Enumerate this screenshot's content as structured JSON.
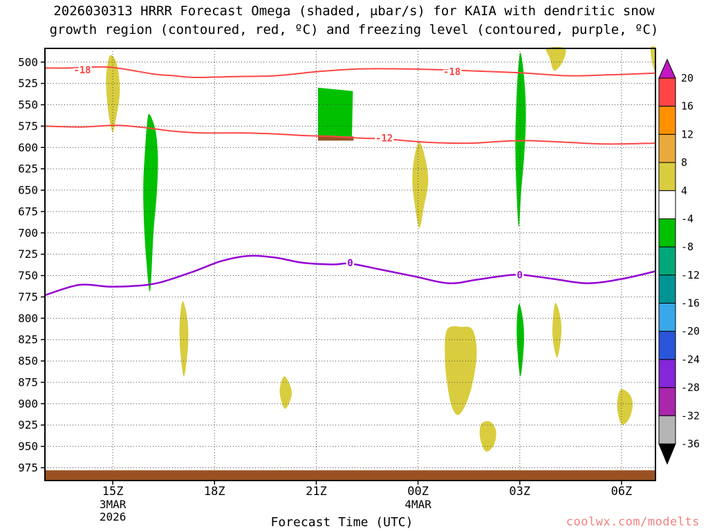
{
  "title": {
    "line1": "2026030313 HRRR Forecast Omega (shaded, μbar/s) for KAIA with dendritic snow",
    "line2": "growth region (contoured, red, ºC) and freezing level (contoured, purple, ºC)"
  },
  "watermark": {
    "text": "coolwx.com/modelts"
  },
  "chart_data": {
    "type": "contour",
    "subtype": "time-height-cross-section",
    "title": "2026030313 HRRR Forecast Omega (shaded, μbar/s) for KAIA with dendritic snow growth region (contoured, red, ºC) and freezing level (contoured, purple, ºC)",
    "xlabel": "Forecast Time (UTC)",
    "x_range_hours_utc": [
      13,
      31
    ],
    "x_ticks": [
      {
        "t": 15,
        "label": "15Z"
      },
      {
        "t": 18,
        "label": "18Z"
      },
      {
        "t": 21,
        "label": "21Z"
      },
      {
        "t": 24,
        "label": "00Z"
      },
      {
        "t": 27,
        "label": "03Z"
      },
      {
        "t": 30,
        "label": "06Z"
      }
    ],
    "x_date_labels": [
      {
        "t": 15,
        "lines": [
          "3MAR",
          "2026"
        ]
      },
      {
        "t": 24,
        "lines": [
          "4MAR"
        ]
      }
    ],
    "pressure_range": [
      484,
      990
    ],
    "pressure_ticks": [
      500,
      525,
      550,
      575,
      600,
      625,
      650,
      675,
      700,
      725,
      750,
      775,
      800,
      825,
      850,
      875,
      900,
      925,
      950,
      975
    ],
    "grid_style": "dotted",
    "colorbar": {
      "units": "μbar/s",
      "tick_labels": [
        "20",
        "16",
        "12",
        "8",
        "4",
        "-4",
        "-8",
        "-12",
        "-16",
        "-20",
        "-24",
        "-28",
        "-32",
        "-36"
      ],
      "colors_top_to_bottom": [
        "#c317c3",
        "#ff4545",
        "#ff9100",
        "#e8aa3c",
        "#d9cd3f",
        "#ffffff",
        "#00c000",
        "#00a878",
        "#009494",
        "#38a8e8",
        "#2a55d9",
        "#8426d9",
        "#aa26aa",
        "#b5b5b5",
        "#000000"
      ]
    },
    "contours": [
      {
        "id": "dendritic-minus-18",
        "label": "-18",
        "color": "#ff4545",
        "width": 2,
        "points": [
          [
            13,
            507
          ],
          [
            13.7,
            507
          ],
          [
            14.9,
            506
          ],
          [
            16.2,
            514
          ],
          [
            16.8,
            516
          ],
          [
            17.4,
            518
          ],
          [
            18.6,
            517
          ],
          [
            19.8,
            516
          ],
          [
            21.1,
            511
          ],
          [
            22.3,
            508
          ],
          [
            23.5,
            508
          ],
          [
            24.7,
            509
          ],
          [
            26.0,
            511
          ],
          [
            27.2,
            513
          ],
          [
            28.4,
            516
          ],
          [
            29.6,
            515
          ],
          [
            31,
            513
          ]
        ],
        "labels": [
          [
            14.1,
            509
          ],
          [
            25.0,
            511
          ]
        ]
      },
      {
        "id": "dendritic-minus-12",
        "label": "-12",
        "color": "#ff4545",
        "width": 2,
        "points": [
          [
            13,
            575
          ],
          [
            14.1,
            576
          ],
          [
            15.1,
            574
          ],
          [
            16.0,
            577
          ],
          [
            16.8,
            581
          ],
          [
            17.6,
            583
          ],
          [
            18.7,
            583
          ],
          [
            19.7,
            584
          ],
          [
            20.6,
            586
          ],
          [
            21.5,
            587
          ],
          [
            22.3,
            589
          ],
          [
            23.0,
            590
          ],
          [
            24.3,
            594
          ],
          [
            25.5,
            595
          ],
          [
            26.4,
            593
          ],
          [
            27.2,
            592
          ],
          [
            28.4,
            594
          ],
          [
            29.6,
            596
          ],
          [
            31,
            595
          ]
        ],
        "labels": [
          [
            23.0,
            589
          ]
        ]
      },
      {
        "id": "freezing-level-0",
        "label": "0",
        "color": "#9400d3",
        "width": 2.5,
        "points": [
          [
            13,
            773
          ],
          [
            14.0,
            761
          ],
          [
            14.9,
            763
          ],
          [
            15.7,
            762
          ],
          [
            16.4,
            758
          ],
          [
            17.4,
            745
          ],
          [
            18.2,
            733
          ],
          [
            19.0,
            727
          ],
          [
            19.8,
            729
          ],
          [
            20.6,
            735
          ],
          [
            21.5,
            737
          ],
          [
            22.0,
            736
          ],
          [
            22.9,
            743
          ],
          [
            23.9,
            751
          ],
          [
            24.9,
            759
          ],
          [
            25.7,
            755
          ],
          [
            26.4,
            751
          ],
          [
            27.0,
            749
          ],
          [
            28.0,
            754
          ],
          [
            29.0,
            759
          ],
          [
            30.0,
            754
          ],
          [
            31,
            745
          ]
        ],
        "labels": [
          [
            22.0,
            735
          ],
          [
            27.0,
            749
          ]
        ]
      }
    ],
    "shaded_regions": [
      {
        "id": "yellow-15z-upper",
        "value": "4 to 8",
        "fill": "#d9cd3f",
        "points": [
          [
            14.93,
            492
          ],
          [
            15.08,
            498
          ],
          [
            15.18,
            516
          ],
          [
            15.2,
            540
          ],
          [
            15.05,
            575
          ],
          [
            14.98,
            581
          ],
          [
            14.86,
            556
          ],
          [
            14.8,
            524
          ],
          [
            14.84,
            504
          ]
        ]
      },
      {
        "id": "green-16z-column",
        "value": "-8 to -4",
        "fill": "#00c000",
        "points": [
          [
            16.08,
            561
          ],
          [
            16.26,
            580
          ],
          [
            16.33,
            612
          ],
          [
            16.3,
            652
          ],
          [
            16.2,
            700
          ],
          [
            16.1,
            768
          ],
          [
            15.99,
            733
          ],
          [
            15.92,
            688
          ],
          [
            15.9,
            642
          ],
          [
            15.96,
            598
          ],
          [
            16.01,
            572
          ]
        ]
      },
      {
        "id": "green-21z-block",
        "value": "-8 to -4",
        "fill": "#00c000",
        "sharp": true,
        "points": [
          [
            21.05,
            530
          ],
          [
            22.08,
            534
          ],
          [
            22.05,
            587
          ],
          [
            21.05,
            587
          ]
        ]
      },
      {
        "id": "surface-patch-21z",
        "value": "surface",
        "fill": "#9a5222",
        "sharp": true,
        "points": [
          [
            21.05,
            587
          ],
          [
            22.1,
            587
          ],
          [
            22.1,
            592
          ],
          [
            21.05,
            592
          ]
        ]
      },
      {
        "id": "yellow-00z-mid",
        "value": "4 to 8",
        "fill": "#d9cd3f",
        "points": [
          [
            24.04,
            594
          ],
          [
            24.22,
            614
          ],
          [
            24.3,
            640
          ],
          [
            24.18,
            668
          ],
          [
            24.04,
            694
          ],
          [
            23.9,
            666
          ],
          [
            23.83,
            638
          ],
          [
            23.89,
            612
          ]
        ]
      },
      {
        "id": "green-03z-column",
        "value": "-8 to -4",
        "fill": "#00c000",
        "points": [
          [
            27.02,
            489
          ],
          [
            27.12,
            515
          ],
          [
            27.18,
            558
          ],
          [
            27.14,
            604
          ],
          [
            27.04,
            652
          ],
          [
            26.97,
            693
          ],
          [
            26.9,
            648
          ],
          [
            26.87,
            598
          ],
          [
            26.9,
            545
          ],
          [
            26.95,
            510
          ]
        ]
      },
      {
        "id": "yellow-28z-top",
        "value": "4 to 8",
        "fill": "#d9cd3f",
        "points": [
          [
            27.8,
            484
          ],
          [
            28.33,
            484
          ],
          [
            28.27,
            499
          ],
          [
            28.02,
            510
          ],
          [
            27.88,
            495
          ]
        ]
      },
      {
        "id": "yellow-31z-top-corner",
        "value": "4 to 8",
        "fill": "#d9cd3f",
        "points": [
          [
            30.86,
            484
          ],
          [
            31.0,
            484
          ],
          [
            31.0,
            511
          ],
          [
            30.9,
            500
          ]
        ]
      },
      {
        "id": "yellow-17z-low",
        "value": "4 to 8",
        "fill": "#d9cd3f",
        "points": [
          [
            17.06,
            780
          ],
          [
            17.2,
            801
          ],
          [
            17.22,
            831
          ],
          [
            17.1,
            868
          ],
          [
            16.99,
            838
          ],
          [
            16.97,
            806
          ]
        ]
      },
      {
        "id": "yellow-20z-small",
        "value": "4 to 8",
        "fill": "#d9cd3f",
        "points": [
          [
            20.06,
            868
          ],
          [
            20.28,
            887
          ],
          [
            20.08,
            906
          ],
          [
            19.92,
            886
          ]
        ]
      },
      {
        "id": "yellow-25z-large",
        "value": "4 to 8",
        "fill": "#d9cd3f",
        "points": [
          [
            24.86,
            813
          ],
          [
            25.3,
            810
          ],
          [
            25.6,
            813
          ],
          [
            25.73,
            836
          ],
          [
            25.66,
            866
          ],
          [
            25.46,
            896
          ],
          [
            25.2,
            913
          ],
          [
            25.0,
            904
          ],
          [
            24.86,
            877
          ],
          [
            24.79,
            845
          ]
        ]
      },
      {
        "id": "green-27z-low",
        "value": "-8 to -4",
        "fill": "#00c000",
        "points": [
          [
            26.98,
            783
          ],
          [
            27.1,
            803
          ],
          [
            27.12,
            831
          ],
          [
            27.02,
            868
          ],
          [
            26.93,
            837
          ],
          [
            26.91,
            806
          ]
        ]
      },
      {
        "id": "yellow-28z-low",
        "value": "4 to 8",
        "fill": "#d9cd3f",
        "points": [
          [
            28.06,
            782
          ],
          [
            28.2,
            799
          ],
          [
            28.22,
            821
          ],
          [
            28.1,
            846
          ],
          [
            27.97,
            823
          ],
          [
            27.98,
            799
          ]
        ]
      },
      {
        "id": "yellow-26z-bottom",
        "value": "4 to 8",
        "fill": "#d9cd3f",
        "points": [
          [
            25.86,
            924
          ],
          [
            26.12,
            921
          ],
          [
            26.3,
            932
          ],
          [
            26.24,
            948
          ],
          [
            26.0,
            956
          ],
          [
            25.83,
            940
          ]
        ]
      },
      {
        "id": "yellow-30z-low",
        "value": "4 to 8",
        "fill": "#d9cd3f",
        "points": [
          [
            29.96,
            884
          ],
          [
            30.22,
            888
          ],
          [
            30.33,
            901
          ],
          [
            30.22,
            918
          ],
          [
            30.0,
            924
          ],
          [
            29.87,
            904
          ]
        ]
      }
    ],
    "surface": {
      "fill": "#9a5222",
      "top_pressure": 978,
      "bottom_pressure": 990
    }
  }
}
